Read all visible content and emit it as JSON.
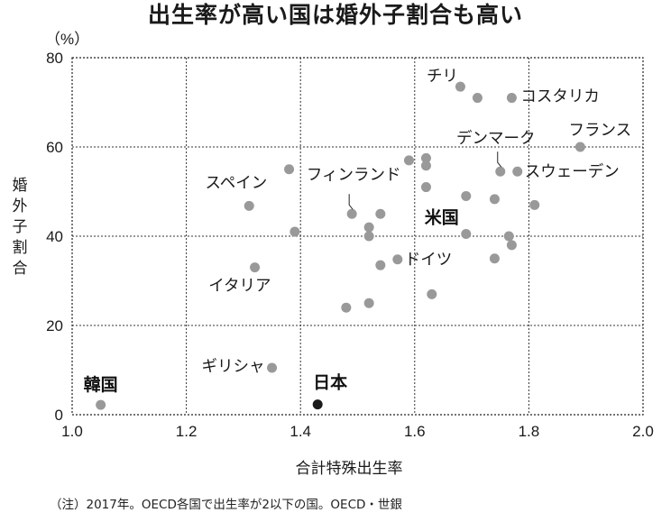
{
  "title": "出生率が高い国は婚外子割合も高い",
  "footnote": "（注）2017年。OECD各国で出生率が2以下の国。OECD・世銀",
  "chart_data": {
    "type": "scatter",
    "title": "出生率が高い国は婚外子割合も高い",
    "xlabel": "合計特殊出生率",
    "ylabel": "婚外子割合",
    "yunit": "（%）",
    "xlim": [
      1.0,
      2.0
    ],
    "ylim": [
      0,
      80
    ],
    "xticks": [
      "1.0",
      "1.2",
      "1.4",
      "1.6",
      "1.8",
      "2.0"
    ],
    "yticks": [
      "0",
      "20",
      "40",
      "60",
      "80"
    ],
    "grid": true,
    "points": [
      {
        "x": 1.05,
        "y": 2.2,
        "label": "韓国",
        "highlight": false
      },
      {
        "x": 1.43,
        "y": 2.3,
        "label": "日本",
        "highlight": true
      },
      {
        "x": 1.35,
        "y": 10.5,
        "label": "ギリシャ",
        "highlight": false
      },
      {
        "x": 1.32,
        "y": 33,
        "label": "イタリア",
        "highlight": false
      },
      {
        "x": 1.31,
        "y": 46.8,
        "label": "スペイン",
        "highlight": false
      },
      {
        "x": 1.38,
        "y": 55,
        "label": "",
        "highlight": false
      },
      {
        "x": 1.39,
        "y": 41,
        "label": "",
        "highlight": false
      },
      {
        "x": 1.49,
        "y": 45,
        "label": "フィンランド",
        "highlight": false
      },
      {
        "x": 1.48,
        "y": 24,
        "label": "",
        "highlight": false
      },
      {
        "x": 1.52,
        "y": 25,
        "label": "",
        "highlight": false
      },
      {
        "x": 1.52,
        "y": 42,
        "label": "",
        "highlight": false
      },
      {
        "x": 1.52,
        "y": 40,
        "label": "",
        "highlight": false
      },
      {
        "x": 1.54,
        "y": 45,
        "label": "",
        "highlight": false
      },
      {
        "x": 1.54,
        "y": 33.5,
        "label": "",
        "highlight": false
      },
      {
        "x": 1.57,
        "y": 34.8,
        "label": "ドイツ",
        "highlight": false
      },
      {
        "x": 1.59,
        "y": 57,
        "label": "",
        "highlight": false
      },
      {
        "x": 1.62,
        "y": 57.5,
        "label": "",
        "highlight": false
      },
      {
        "x": 1.62,
        "y": 55.8,
        "label": "",
        "highlight": false
      },
      {
        "x": 1.62,
        "y": 51,
        "label": "",
        "highlight": false
      },
      {
        "x": 1.63,
        "y": 27,
        "label": "",
        "highlight": false
      },
      {
        "x": 1.68,
        "y": 73.5,
        "label": "チリ",
        "highlight": false
      },
      {
        "x": 1.71,
        "y": 71,
        "label": "",
        "highlight": false
      },
      {
        "x": 1.69,
        "y": 49,
        "label": "",
        "highlight": false
      },
      {
        "x": 1.69,
        "y": 40.5,
        "label": "米国",
        "highlight": false
      },
      {
        "x": 1.74,
        "y": 48.3,
        "label": "",
        "highlight": false
      },
      {
        "x": 1.74,
        "y": 35,
        "label": "",
        "highlight": false
      },
      {
        "x": 1.75,
        "y": 54.5,
        "label": "デンマーク",
        "highlight": false
      },
      {
        "x": 1.765,
        "y": 40,
        "label": "",
        "highlight": false
      },
      {
        "x": 1.77,
        "y": 38,
        "label": "",
        "highlight": false
      },
      {
        "x": 1.77,
        "y": 71,
        "label": "コスタリカ",
        "highlight": false
      },
      {
        "x": 1.78,
        "y": 54.5,
        "label": "スウェーデン",
        "highlight": false
      },
      {
        "x": 1.81,
        "y": 47,
        "label": "",
        "highlight": false
      },
      {
        "x": 1.89,
        "y": 60,
        "label": "フランス",
        "highlight": false
      }
    ]
  }
}
